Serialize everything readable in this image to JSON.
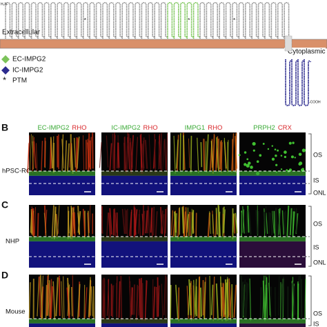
{
  "diagram": {
    "n_terminus": "H₂N-",
    "c_terminus": "-COOH",
    "extracellular": "Extracellular",
    "cytoplasmic": "Cytoplasmic",
    "legend": [
      {
        "label": "EC-IMPG2"
      },
      {
        "label": "IC-IMPG2"
      },
      {
        "label": "PTM"
      }
    ]
  },
  "columns": [
    {
      "green": "EC-IMPG2",
      "red": "RHO"
    },
    {
      "green": "IC-IMPG2",
      "red": "RHO"
    },
    {
      "green": "IMPG1",
      "red": "RHO"
    },
    {
      "green": "PRPH2",
      "red": "CRX"
    }
  ],
  "panels": [
    {
      "label": "B",
      "sample": "hPSC-RO",
      "layers": [
        "OS",
        "IS",
        "ONL"
      ]
    },
    {
      "label": "C",
      "sample": "NHP",
      "layers": [
        "OS",
        "IS",
        "ONL"
      ]
    },
    {
      "label": "D",
      "sample": "Mouse",
      "layers": [
        "OS",
        "IS"
      ]
    }
  ]
}
